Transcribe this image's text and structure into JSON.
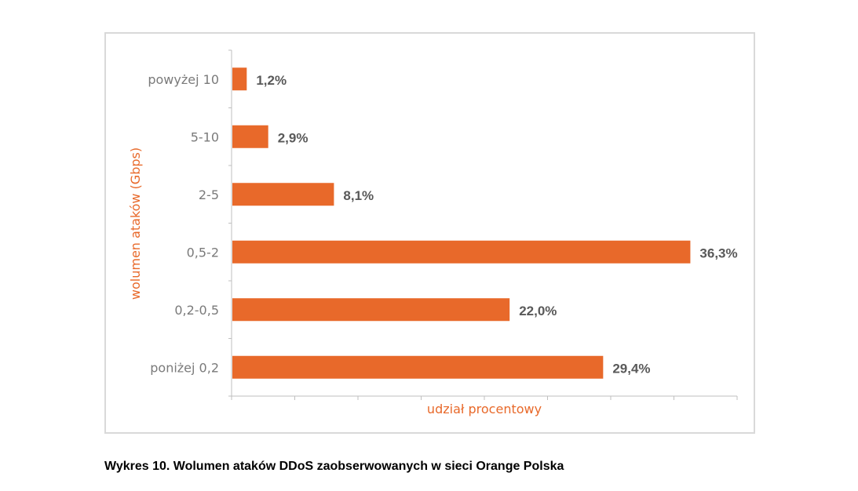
{
  "caption": "Wykres 10. Wolumen ataków DDoS zaobserwowanych w sieci Orange Polska",
  "colors": {
    "bar": "#e8692a",
    "axis_label": "#e8692a",
    "tick_text": "#7a7a7a",
    "value_text": "#595959",
    "axis_line": "#bfbfbf"
  },
  "chart_data": {
    "type": "bar",
    "orientation": "horizontal",
    "categories": [
      "powyżej 10",
      "5-10",
      "2-5",
      "0,5-2",
      "0,2-0,5",
      "poniżej 0,2"
    ],
    "values": [
      1.2,
      2.9,
      8.1,
      36.3,
      22.0,
      29.4
    ],
    "value_labels": [
      "1,2%",
      "2,9%",
      "8,1%",
      "36,3%",
      "22,0%",
      "29,4%"
    ],
    "xlabel": "udział procentowy",
    "ylabel": "wolumen ataków (Gbps)",
    "xlim": [
      0,
      40
    ],
    "x_ticks": [
      0,
      5,
      10,
      15,
      20,
      25,
      30,
      35,
      40
    ],
    "x_tick_labels_shown": false,
    "grid": false,
    "legend": "none"
  }
}
